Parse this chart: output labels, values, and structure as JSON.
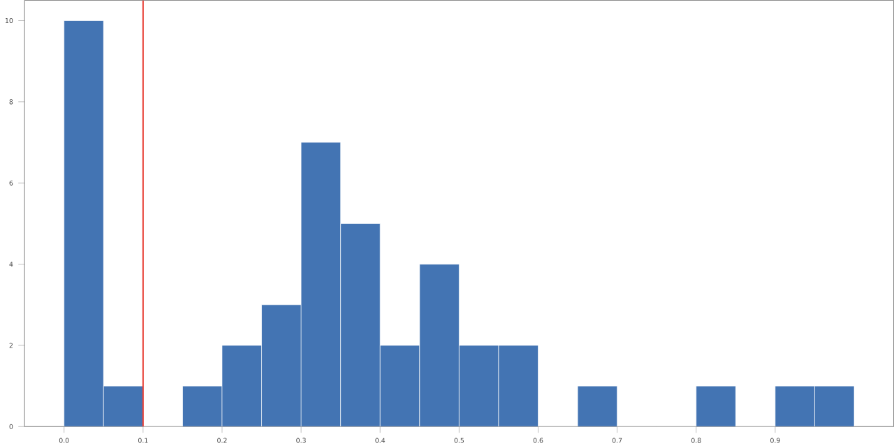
{
  "chart_data": {
    "type": "histogram",
    "color": "#4374b3",
    "bins": [
      0.0,
      0.05,
      0.1,
      0.15,
      0.2,
      0.25,
      0.3,
      0.35,
      0.4,
      0.45,
      0.5,
      0.55,
      0.6,
      0.65,
      0.7,
      0.75,
      0.8,
      0.85,
      0.9,
      0.95,
      1.0
    ],
    "values": [
      10,
      1,
      0,
      1,
      2,
      3,
      7,
      5,
      2,
      4,
      2,
      2,
      0,
      1,
      0,
      0,
      1,
      0,
      1,
      1
    ],
    "xlim": [
      -0.05,
      1.05
    ],
    "ylim": [
      0,
      10.5
    ],
    "xticks": [
      {
        "value": 0.0,
        "label": "0.0"
      },
      0.1,
      0.2,
      0.3,
      0.4,
      0.5,
      0.6,
      0.7,
      0.8,
      0.9
    ],
    "yticks": [
      0,
      2,
      4,
      6,
      8,
      10
    ],
    "ref_lines": [
      {
        "axis": "x",
        "value": 0.1,
        "color": "#e8453c"
      }
    ],
    "grid": false
  }
}
